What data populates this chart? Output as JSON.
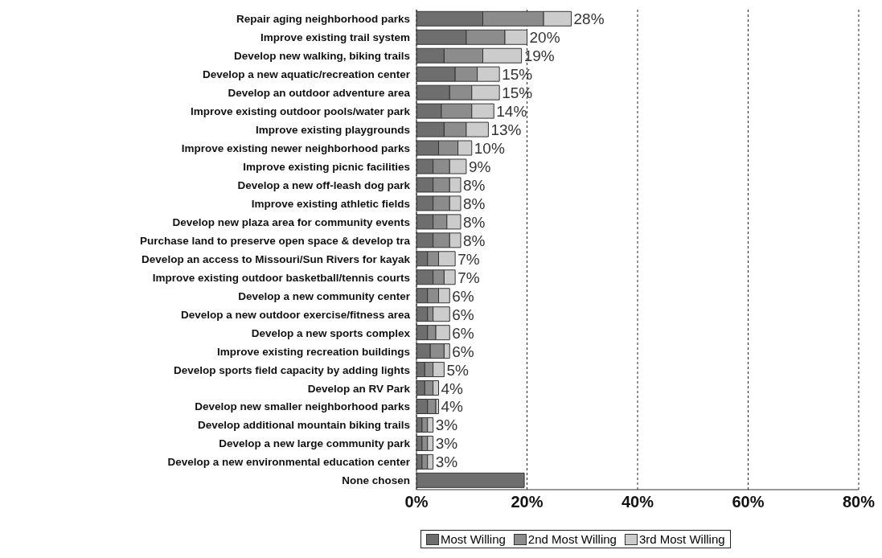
{
  "chart_data": {
    "type": "bar",
    "orientation": "horizontal",
    "stacked": true,
    "categories": [
      "Repair aging neighborhood parks",
      "Improve existing trail system",
      "Develop new walking, biking trails",
      "Develop a new aquatic/recreation center",
      "Develop an outdoor adventure area",
      "Improve existing outdoor pools/water park",
      "Improve existing playgrounds",
      "Improve existing newer neighborhood parks",
      "Improve existing picnic facilities",
      "Develop a new off-leash dog park",
      "Improve existing athletic fields",
      "Develop new plaza area for community events",
      "Purchase land to preserve open space & develop tra",
      "Develop an access to Missouri/Sun Rivers for kayak",
      "Improve existing outdoor basketball/tennis courts",
      "Develop a new community center",
      "Develop a new outdoor exercise/fitness area",
      "Develop a new sports complex",
      "Improve existing recreation buildings",
      "Develop sports field capacity by adding lights",
      "Develop an RV Park",
      "Develop new smaller neighborhood parks",
      "Develop additional mountain biking trails",
      "Develop a new large community park",
      "Develop a new environmental education center",
      "None chosen"
    ],
    "series": [
      {
        "name": "Most Willing",
        "color": "#6e6e6e",
        "values": [
          12,
          9,
          5,
          7,
          6,
          4.5,
          5,
          4,
          3,
          3,
          3,
          3,
          3,
          2,
          3,
          2,
          2,
          2,
          2.5,
          1.5,
          1.5,
          2,
          1,
          1,
          1,
          19.5
        ]
      },
      {
        "name": "2nd Most Willing",
        "color": "#8c8c8c",
        "values": [
          11,
          7,
          7,
          4,
          4,
          5.5,
          4,
          3.5,
          3,
          3,
          3,
          2.5,
          3,
          2,
          2,
          2,
          1,
          1.5,
          2.5,
          1.5,
          1.5,
          1.5,
          1,
          1,
          1,
          0
        ]
      },
      {
        "name": "3rd Most Willing",
        "color": "#cccccc",
        "values": [
          5,
          4,
          7,
          4,
          5,
          4,
          4,
          2.5,
          3,
          2,
          2,
          2.5,
          2,
          3,
          2,
          2,
          3,
          2.5,
          1,
          2,
          1,
          0.5,
          1,
          1,
          1,
          0
        ]
      }
    ],
    "totals": [
      "28%",
      "20%",
      "19%",
      "15%",
      "15%",
      "14%",
      "13%",
      "10%",
      "9%",
      "8%",
      "8%",
      "8%",
      "8%",
      "7%",
      "7%",
      "6%",
      "6%",
      "6%",
      "6%",
      "5%",
      "4%",
      "4%",
      "3%",
      "3%",
      "3%",
      null
    ],
    "xlim": [
      0,
      80
    ],
    "xticks": [
      {
        "value": 0,
        "label": "0%"
      },
      {
        "value": 20,
        "label": "20%"
      },
      {
        "value": 40,
        "label": "40%"
      },
      {
        "value": 60,
        "label": "60%"
      },
      {
        "value": 80,
        "label": "80%"
      }
    ],
    "grid": "x",
    "legend": "bottom"
  }
}
